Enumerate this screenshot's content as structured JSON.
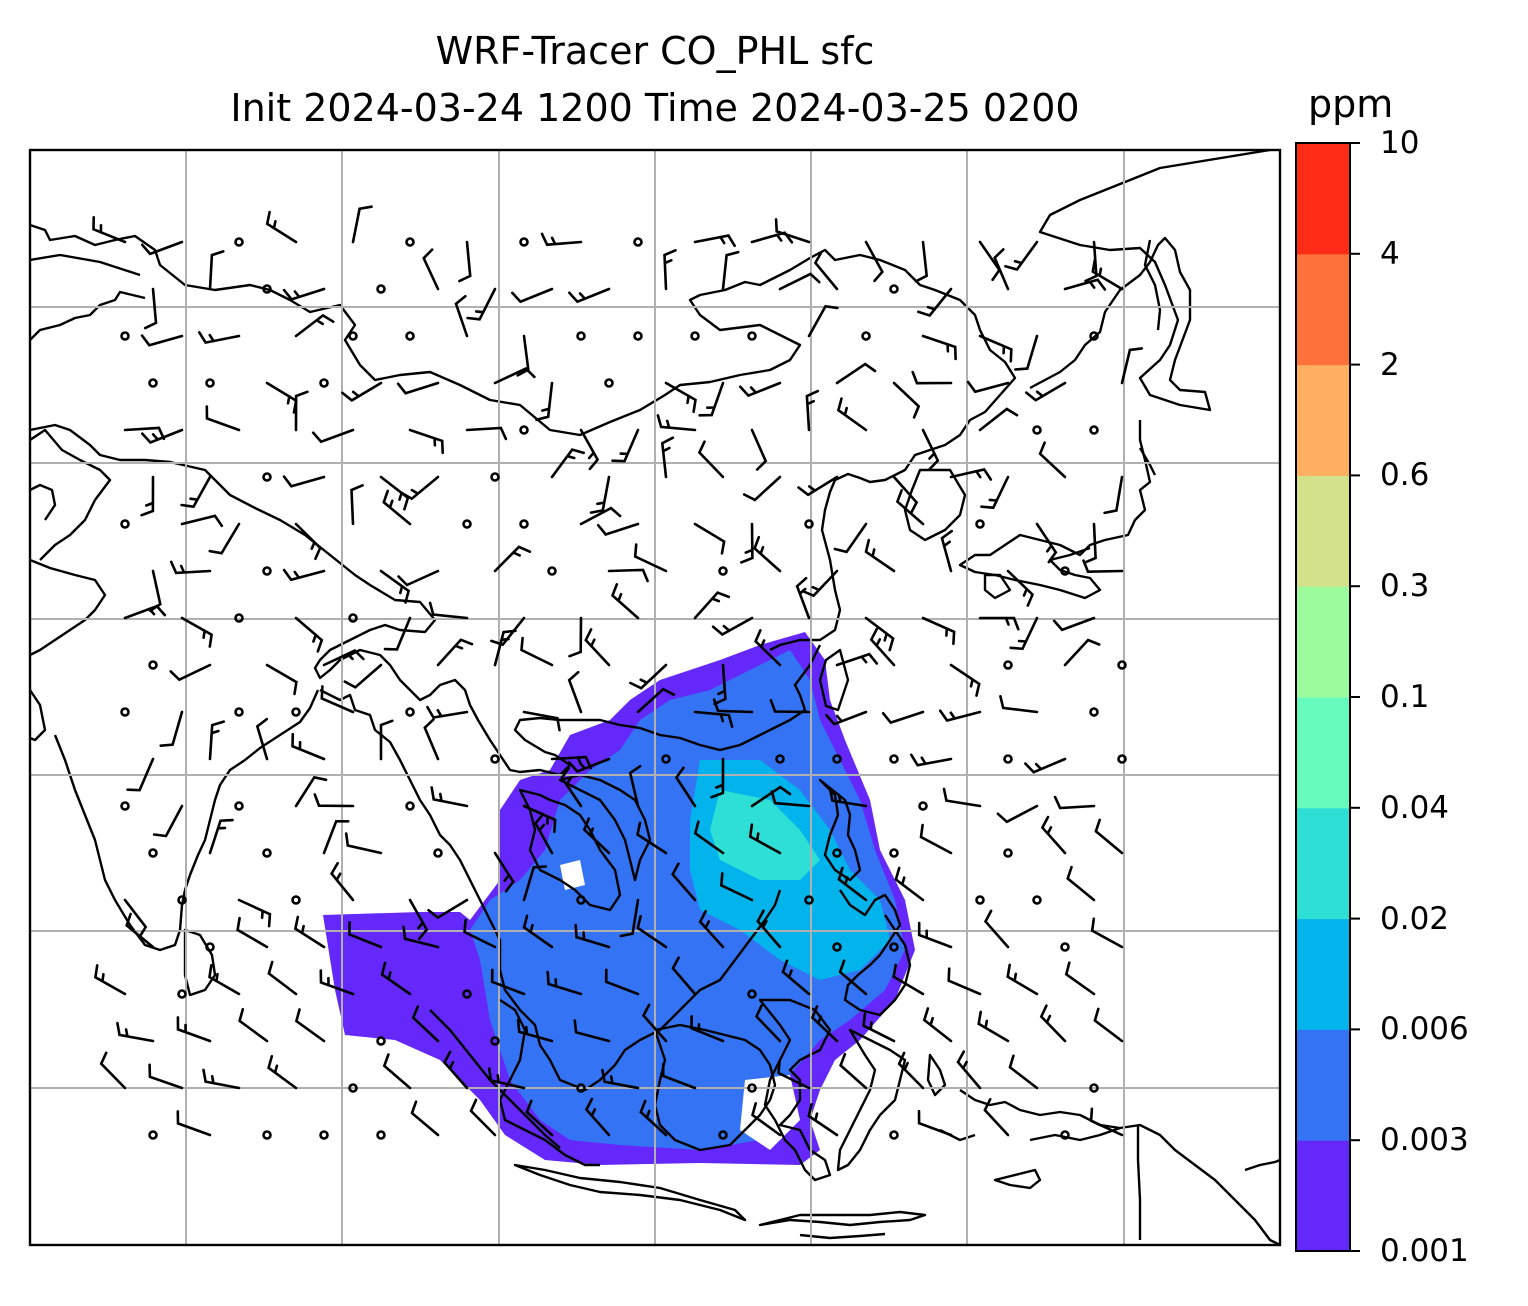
{
  "title": {
    "line1": "WRF-Tracer CO_PHL sfc",
    "line2": "Init 2024-03-24 1200 Time 2024-03-25 0200"
  },
  "colorbar": {
    "unit": "ppm",
    "levels": [
      "0.001",
      "0.003",
      "0.006",
      "0.02",
      "0.04",
      "0.1",
      "0.3",
      "0.6",
      "2",
      "4",
      "10"
    ],
    "colors": [
      "#6428fa",
      "#3473f4",
      "#03b3eb",
      "#2edfd6",
      "#66fbbc",
      "#9cfc9d",
      "#d2e18a",
      "#feaf5f",
      "#ff713b",
      "#fe2c17"
    ]
  },
  "map": {
    "region": "East and Southeast Asia",
    "gridlines": "on",
    "plume_colors": [
      "#6428fa",
      "#3473f4",
      "#03b3eb",
      "#2edfd6"
    ]
  }
}
